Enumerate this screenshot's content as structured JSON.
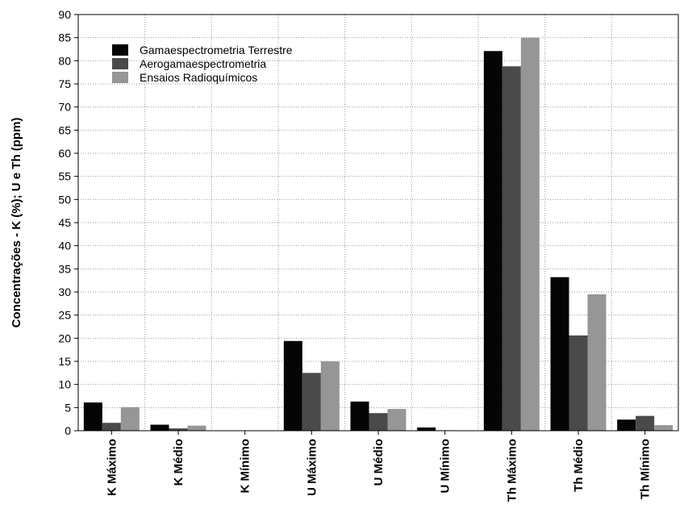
{
  "chart_data": {
    "type": "bar",
    "title": "",
    "xlabel": "",
    "ylabel": "Concentrações - K (%); U e Th (ppm)",
    "ylim": [
      0,
      90
    ],
    "yticks": [
      0,
      5,
      10,
      15,
      20,
      25,
      30,
      35,
      40,
      45,
      50,
      55,
      60,
      65,
      70,
      75,
      80,
      85,
      90
    ],
    "grid": true,
    "legend_position": "top-left",
    "categories": [
      "K Máximo",
      "K Médio",
      "K Mínimo",
      "U Máximo",
      "U Médio",
      "U Mínimo",
      "Th Máximo",
      "Th Médio",
      "Th Mínimo"
    ],
    "series": [
      {
        "name": "Gamaespectrometria Terrestre",
        "color": "#050505",
        "values": [
          6.1,
          1.3,
          0.0,
          19.4,
          6.3,
          0.7,
          82.1,
          33.2,
          2.4
        ]
      },
      {
        "name": "Aerogamaespectrometria",
        "color": "#4a4a4a",
        "values": [
          1.7,
          0.5,
          0.0,
          12.5,
          3.8,
          0.1,
          78.8,
          20.6,
          3.2
        ]
      },
      {
        "name": "Ensaios Radioquímicos",
        "color": "#969696",
        "values": [
          5.1,
          1.1,
          0.0,
          15.0,
          4.7,
          0.0,
          85.0,
          29.5,
          1.2
        ]
      }
    ]
  }
}
